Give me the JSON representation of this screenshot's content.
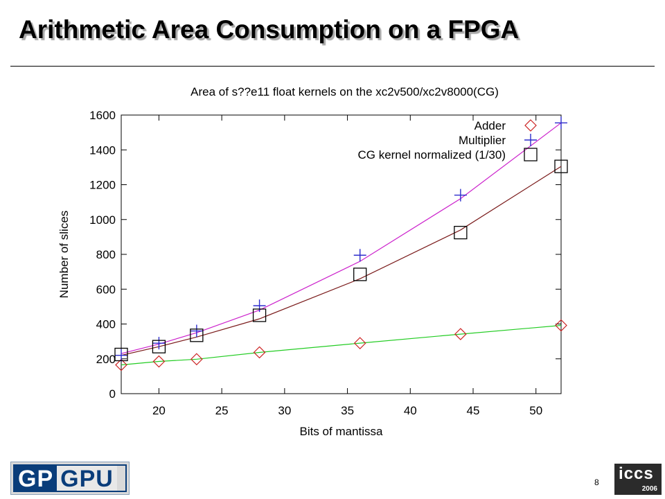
{
  "slide": {
    "title": "Arithmetic Area Consumption on a FPGA",
    "page_number": "8"
  },
  "logos": {
    "left_part_a": "GP",
    "left_part_b": "GPU",
    "right_word": "iccs",
    "right_year": "2006"
  },
  "chart_data": {
    "type": "scatter",
    "title": "Area of s??e11 float kernels on the xc2v500/xc2v8000(CG)",
    "xlabel": "Bits of mantissa",
    "ylabel": "Number of slices",
    "xlim": [
      17,
      52
    ],
    "ylim": [
      0,
      1600
    ],
    "xticks": [
      20,
      25,
      30,
      35,
      40,
      45,
      50
    ],
    "yticks": [
      0,
      200,
      400,
      600,
      800,
      1000,
      1200,
      1400,
      1600
    ],
    "legend_position": "top-right",
    "grid": false,
    "series": [
      {
        "name": "Adder",
        "marker": "diamond",
        "color": "#cc2222",
        "fit_color": "#22cc22",
        "points": [
          [
            17,
            165
          ],
          [
            20,
            185
          ],
          [
            23,
            198
          ],
          [
            28,
            237
          ],
          [
            36,
            290
          ],
          [
            44,
            342
          ],
          [
            52,
            392
          ]
        ],
        "fit": [
          [
            17,
            165
          ],
          [
            20,
            185
          ],
          [
            23,
            198
          ],
          [
            28,
            237
          ],
          [
            36,
            290
          ],
          [
            44,
            342
          ],
          [
            52,
            392
          ]
        ]
      },
      {
        "name": "Multiplier",
        "marker": "plus",
        "color": "#2b2bcc",
        "fit_color": "#cc22cc",
        "points": [
          [
            17,
            220
          ],
          [
            20,
            290
          ],
          [
            23,
            360
          ],
          [
            28,
            505
          ],
          [
            36,
            795
          ],
          [
            44,
            1140
          ],
          [
            52,
            1555
          ]
        ],
        "fit": [
          [
            17,
            230
          ],
          [
            20,
            285
          ],
          [
            23,
            350
          ],
          [
            28,
            480
          ],
          [
            36,
            760
          ],
          [
            44,
            1120
          ],
          [
            52,
            1555
          ]
        ]
      },
      {
        "name": "CG kernel normalized (1/30)",
        "marker": "square",
        "color": "#000000",
        "fit_color": "#7a1a1a",
        "points": [
          [
            17,
            225
          ],
          [
            20,
            270
          ],
          [
            23,
            335
          ],
          [
            28,
            450
          ],
          [
            36,
            685
          ],
          [
            44,
            925
          ],
          [
            52,
            1305
          ]
        ],
        "fit": [
          [
            17,
            220
          ],
          [
            20,
            270
          ],
          [
            23,
            325
          ],
          [
            28,
            430
          ],
          [
            36,
            660
          ],
          [
            44,
            940
          ],
          [
            52,
            1305
          ]
        ]
      }
    ]
  }
}
